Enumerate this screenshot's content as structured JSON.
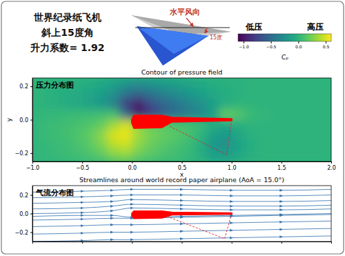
{
  "header": {
    "lines": [
      "世界纪录纸飞机",
      "斜上15度角",
      "升力系数= 1.92"
    ]
  },
  "diagram": {
    "wind_label": "水平风向",
    "angle_label": "15度"
  },
  "chart_data": [
    {
      "type": "heatmap",
      "title": "Contour of pressure field",
      "annotation": "压力分布图",
      "x_label": "x",
      "y_label": "y",
      "xlim": [
        -1,
        2
      ],
      "ylim": [
        -0.25,
        0.25
      ],
      "xticks": [
        {
          "value": -1,
          "label": "−1.0"
        },
        {
          "value": -0.5,
          "label": "−0.5"
        },
        {
          "value": 0,
          "label": "0.0"
        },
        0.5,
        {
          "value": 1,
          "label": "1.0"
        },
        1.5,
        {
          "value": 2,
          "label": "2.0"
        }
      ],
      "yticks": [
        {
          "value": -0.2,
          "label": "−0.2"
        },
        {
          "value": 0,
          "label": "0.0"
        },
        0.2
      ],
      "x_edges": [
        -1,
        -0.875,
        -0.75,
        -0.625,
        -0.5,
        -0.375,
        -0.25,
        -0.125,
        0,
        0.125,
        0.25,
        0.375,
        0.5,
        0.625,
        0.75,
        0.875,
        1,
        1.125,
        1.25,
        1.375,
        1.5,
        1.625,
        1.75,
        1.875,
        2
      ],
      "y_edges": [
        0.25,
        0.1875,
        0.125,
        0.0625,
        0,
        -0.0625,
        -0.125,
        -0.1875,
        -0.25
      ],
      "cells": [
        [
          0,
          0,
          -0.02,
          -0.03,
          -0.05,
          -0.08,
          -0.12,
          -0.2,
          -0.25,
          -0.22,
          -0.18,
          -0.14,
          -0.1,
          -0.07,
          -0.05,
          -0.03,
          -0.02,
          -0.01,
          0,
          0,
          0,
          0,
          0,
          0
        ],
        [
          0,
          -0.02,
          -0.04,
          -0.06,
          -0.1,
          -0.15,
          -0.25,
          -0.45,
          -0.55,
          -0.45,
          -0.35,
          -0.28,
          -0.2,
          -0.14,
          -0.08,
          -0.04,
          -0.02,
          -0.01,
          0,
          0,
          0,
          0,
          0,
          0
        ],
        [
          0,
          -0.02,
          -0.05,
          -0.08,
          -0.12,
          -0.2,
          -0.35,
          -0.8,
          -1.0,
          -0.7,
          -0.55,
          -0.45,
          -0.35,
          -0.25,
          -0.15,
          -0.05,
          0,
          0,
          0,
          0,
          0,
          0,
          0,
          0
        ],
        [
          0.02,
          0.03,
          0.04,
          0.05,
          0.06,
          0.08,
          0.1,
          -0.5,
          -1.0,
          -0.8,
          -0.6,
          -0.5,
          -0.4,
          -0.3,
          -0.15,
          0.2,
          0.15,
          0.05,
          0.02,
          0,
          0,
          0,
          0,
          0
        ],
        [
          0.03,
          0.05,
          0.07,
          0.1,
          0.13,
          0.2,
          0.35,
          0.5,
          0.3,
          0.2,
          0.15,
          0.12,
          0.1,
          0.05,
          -0.05,
          -0.1,
          -0.05,
          0,
          0,
          0,
          0,
          0,
          0,
          0
        ],
        [
          0.03,
          0.05,
          0.08,
          0.12,
          0.18,
          0.3,
          0.5,
          0.55,
          0.35,
          0.25,
          0.2,
          0.15,
          0.1,
          0,
          -0.15,
          -0.2,
          -0.1,
          -0.03,
          0,
          0,
          0,
          0,
          0,
          0
        ],
        [
          0.02,
          0.04,
          0.06,
          0.1,
          0.15,
          0.25,
          0.4,
          0.45,
          0.3,
          0.2,
          0.15,
          0.1,
          0.05,
          -0.05,
          -0.2,
          -0.25,
          -0.12,
          -0.04,
          0,
          0,
          0,
          0,
          0,
          0
        ],
        [
          0.02,
          0.03,
          0.05,
          0.07,
          0.1,
          0.15,
          0.25,
          0.3,
          0.2,
          0.15,
          0.1,
          0.07,
          0.03,
          -0.03,
          -0.12,
          -0.15,
          -0.08,
          -0.03,
          0,
          0,
          0,
          0,
          0,
          0
        ]
      ],
      "colorbar": {
        "range": [
          -1.1,
          0.6
        ],
        "ticks": [
          {
            "value": -1,
            "label": "−1.0"
          },
          {
            "value": -0.5,
            "label": "−0.5"
          },
          {
            "value": 0,
            "label": "0.0"
          },
          0.5
        ],
        "label": "Cₚ",
        "low_label": "低压",
        "high_label": "高压"
      },
      "airplane": {
        "x": [
          0,
          0.02,
          0.3,
          0.4,
          1,
          1,
          0.4,
          0.3,
          0.02,
          0
        ],
        "y": [
          0,
          0.025,
          0.025,
          0.012,
          0.004,
          -0.004,
          -0.012,
          -0.045,
          -0.05,
          -0.02
        ]
      },
      "outline": {
        "x": [
          0.38,
          0.95,
          1.0
        ],
        "y": [
          -0.04,
          -0.21,
          0
        ]
      }
    },
    {
      "type": "streamlines",
      "title": "Streamlines around world record paper airplane (AoA = 15.0°)",
      "annotation": "气流分布图",
      "xlim": [
        -1,
        2
      ],
      "ylim": [
        -0.3,
        0.3
      ],
      "xticks": [
        -1,
        -0.5,
        0,
        0.5,
        1,
        1.5,
        2
      ],
      "yticks": [
        {
          "value": -0.2,
          "label": "−0.2"
        },
        {
          "value": 0,
          "label": "0.0"
        },
        0.2
      ],
      "tick_labels": "y",
      "x": [
        -1,
        -0.5,
        -0.2,
        0,
        0.5,
        1,
        1.5,
        2
      ],
      "series": [
        {
          "values": [
            -0.3,
            -0.29,
            -0.28,
            -0.28,
            -0.27,
            -0.26,
            -0.25,
            -0.24
          ]
        },
        {
          "values": [
            -0.22,
            -0.21,
            -0.2,
            -0.2,
            -0.19,
            -0.18,
            -0.17,
            -0.16
          ]
        },
        {
          "values": [
            -0.14,
            -0.13,
            -0.12,
            -0.12,
            -0.11,
            -0.1,
            -0.09,
            -0.08
          ]
        },
        {
          "values": [
            -0.07,
            -0.06,
            -0.05,
            -0.05,
            -0.04,
            -0.03,
            -0.02,
            -0.01
          ]
        },
        {
          "values": [
            -0.03,
            -0.02,
            -0.02,
            -0.04,
            -0.03,
            -0.02,
            -0.01,
            0.0
          ]
        },
        {
          "values": [
            0.0,
            0.01,
            0.03,
            0.06,
            0.05,
            0.04,
            0.04,
            0.05
          ]
        },
        {
          "values": [
            0.05,
            0.06,
            0.08,
            0.1,
            0.09,
            0.08,
            0.08,
            0.09
          ]
        },
        {
          "values": [
            0.11,
            0.12,
            0.13,
            0.15,
            0.14,
            0.13,
            0.13,
            0.14
          ]
        },
        {
          "values": [
            0.17,
            0.18,
            0.19,
            0.2,
            0.2,
            0.19,
            0.19,
            0.2
          ]
        },
        {
          "values": [
            0.23,
            0.24,
            0.25,
            0.26,
            0.26,
            0.25,
            0.25,
            0.26
          ]
        }
      ],
      "airplane": {
        "x": [
          0,
          0.02,
          0.3,
          0.4,
          1,
          1,
          0.4,
          0.3,
          0.02,
          0
        ],
        "y": [
          0,
          0.025,
          0.025,
          0.012,
          0.004,
          -0.004,
          -0.012,
          -0.045,
          -0.05,
          -0.02
        ]
      },
      "outline": {
        "x": [
          0.35,
          0.93,
          1.0
        ],
        "y": [
          -0.03,
          -0.27,
          0
        ]
      }
    }
  ]
}
